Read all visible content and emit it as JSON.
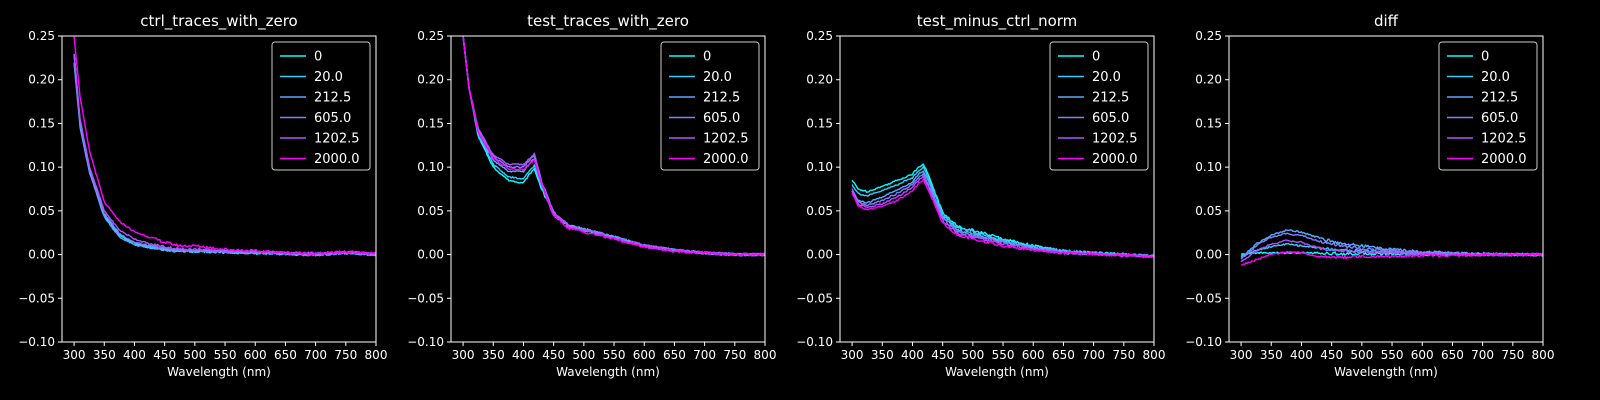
{
  "figure": {
    "background": "#000000",
    "foreground": "#ffffff"
  },
  "chart_data": [
    {
      "type": "line",
      "title": "ctrl_traces_with_zero",
      "xlabel": "Wavelength (nm)",
      "ylabel": "",
      "xlim": [
        280,
        800
      ],
      "ylim": [
        -0.1,
        0.25
      ],
      "xticks": [
        "300",
        "350",
        "400",
        "450",
        "500",
        "550",
        "600",
        "650",
        "700",
        "750",
        "800"
      ],
      "yticks": [
        "−0.10",
        "−0.05",
        "0.00",
        "0.05",
        "0.10",
        "0.15",
        "0.20",
        "0.25"
      ],
      "legend": "top-right",
      "grid": false,
      "x": [
        300,
        310,
        325,
        350,
        375,
        400,
        425,
        450,
        475,
        500,
        550,
        600,
        650,
        700,
        750,
        800
      ],
      "series": [
        {
          "name": "0",
          "color": "#00ffff",
          "values": [
            0.23,
            0.15,
            0.1,
            0.045,
            0.022,
            0.012,
            0.008,
            0.006,
            0.004,
            0.004,
            0.003,
            0.002,
            0.001,
            0.0,
            0.002,
            0.0
          ]
        },
        {
          "name": "20.0",
          "color": "#33ccff",
          "values": [
            0.23,
            0.15,
            0.1,
            0.046,
            0.023,
            0.013,
            0.009,
            0.006,
            0.005,
            0.004,
            0.003,
            0.002,
            0.001,
            0.0,
            0.002,
            0.0
          ]
        },
        {
          "name": "212.5",
          "color": "#55aaff",
          "values": [
            0.22,
            0.145,
            0.095,
            0.043,
            0.02,
            0.011,
            0.008,
            0.005,
            0.004,
            0.004,
            0.003,
            0.002,
            0.001,
            0.0,
            0.002,
            0.0
          ]
        },
        {
          "name": "605.0",
          "color": "#7f80ff",
          "values": [
            0.22,
            0.15,
            0.098,
            0.047,
            0.024,
            0.014,
            0.01,
            0.007,
            0.005,
            0.005,
            0.004,
            0.003,
            0.001,
            0.0,
            0.002,
            0.0
          ]
        },
        {
          "name": "1202.5",
          "color": "#aa55ff",
          "values": [
            0.23,
            0.155,
            0.102,
            0.05,
            0.028,
            0.018,
            0.012,
            0.009,
            0.006,
            0.006,
            0.004,
            0.003,
            0.002,
            0.001,
            0.003,
            0.001
          ]
        },
        {
          "name": "2000.0",
          "color": "#ff00ff",
          "values": [
            0.25,
            0.18,
            0.12,
            0.06,
            0.038,
            0.026,
            0.02,
            0.014,
            0.01,
            0.01,
            0.006,
            0.004,
            0.002,
            0.001,
            0.003,
            0.001
          ]
        }
      ]
    },
    {
      "type": "line",
      "title": "test_traces_with_zero",
      "xlabel": "Wavelength (nm)",
      "ylabel": "",
      "xlim": [
        280,
        800
      ],
      "ylim": [
        -0.1,
        0.25
      ],
      "xticks": [
        "300",
        "350",
        "400",
        "450",
        "500",
        "550",
        "600",
        "650",
        "700",
        "750",
        "800"
      ],
      "yticks": [
        "−0.10",
        "−0.05",
        "0.00",
        "0.05",
        "0.10",
        "0.15",
        "0.20",
        "0.25"
      ],
      "legend": "top-right",
      "grid": false,
      "x": [
        300,
        310,
        325,
        350,
        375,
        400,
        410,
        418,
        430,
        450,
        475,
        500,
        550,
        600,
        650,
        700,
        750,
        800
      ],
      "series": [
        {
          "name": "0",
          "color": "#00ffff",
          "values": [
            0.25,
            0.19,
            0.135,
            0.1,
            0.085,
            0.082,
            0.092,
            0.098,
            0.075,
            0.046,
            0.032,
            0.028,
            0.02,
            0.01,
            0.005,
            0.002,
            0.0,
            0.0
          ]
        },
        {
          "name": "20.0",
          "color": "#33ccff",
          "values": [
            0.25,
            0.19,
            0.137,
            0.103,
            0.089,
            0.086,
            0.096,
            0.102,
            0.078,
            0.047,
            0.033,
            0.029,
            0.02,
            0.01,
            0.005,
            0.002,
            0.0,
            0.0
          ]
        },
        {
          "name": "212.5",
          "color": "#55aaff",
          "values": [
            0.25,
            0.19,
            0.14,
            0.108,
            0.095,
            0.095,
            0.104,
            0.11,
            0.082,
            0.048,
            0.033,
            0.029,
            0.02,
            0.01,
            0.005,
            0.002,
            0.0,
            0.0
          ]
        },
        {
          "name": "605.0",
          "color": "#7f80ff",
          "values": [
            0.25,
            0.19,
            0.142,
            0.112,
            0.1,
            0.1,
            0.108,
            0.113,
            0.083,
            0.048,
            0.033,
            0.029,
            0.02,
            0.01,
            0.005,
            0.002,
            0.0,
            0.0
          ]
        },
        {
          "name": "1202.5",
          "color": "#aa55ff",
          "values": [
            0.25,
            0.19,
            0.144,
            0.114,
            0.103,
            0.103,
            0.11,
            0.115,
            0.084,
            0.048,
            0.032,
            0.028,
            0.019,
            0.01,
            0.005,
            0.002,
            0.0,
            0.0
          ]
        },
        {
          "name": "2000.0",
          "color": "#ff00ff",
          "values": [
            0.25,
            0.19,
            0.14,
            0.11,
            0.098,
            0.097,
            0.104,
            0.108,
            0.08,
            0.045,
            0.03,
            0.026,
            0.018,
            0.009,
            0.004,
            0.002,
            0.0,
            0.0
          ]
        }
      ]
    },
    {
      "type": "line",
      "title": "test_minus_ctrl_norm",
      "xlabel": "Wavelength (nm)",
      "ylabel": "",
      "xlim": [
        280,
        800
      ],
      "ylim": [
        -0.1,
        0.25
      ],
      "xticks": [
        "300",
        "350",
        "400",
        "450",
        "500",
        "550",
        "600",
        "650",
        "700",
        "750",
        "800"
      ],
      "yticks": [
        "−0.10",
        "−0.05",
        "0.00",
        "0.05",
        "0.10",
        "0.15",
        "0.20",
        "0.25"
      ],
      "legend": "top-right",
      "grid": false,
      "x": [
        300,
        310,
        325,
        350,
        375,
        400,
        410,
        418,
        430,
        450,
        475,
        500,
        550,
        600,
        650,
        700,
        750,
        800
      ],
      "series": [
        {
          "name": "0",
          "color": "#00ffff",
          "values": [
            0.085,
            0.075,
            0.072,
            0.078,
            0.085,
            0.092,
            0.1,
            0.104,
            0.085,
            0.048,
            0.032,
            0.028,
            0.018,
            0.01,
            0.004,
            0.002,
            0.0,
            -0.002
          ]
        },
        {
          "name": "20.0",
          "color": "#33ccff",
          "values": [
            0.08,
            0.07,
            0.067,
            0.073,
            0.08,
            0.088,
            0.096,
            0.1,
            0.082,
            0.046,
            0.03,
            0.026,
            0.016,
            0.009,
            0.004,
            0.002,
            0.0,
            -0.002
          ]
        },
        {
          "name": "212.5",
          "color": "#55aaff",
          "values": [
            0.072,
            0.062,
            0.059,
            0.066,
            0.074,
            0.083,
            0.092,
            0.096,
            0.078,
            0.043,
            0.028,
            0.024,
            0.015,
            0.008,
            0.003,
            0.001,
            0.0,
            -0.002
          ]
        },
        {
          "name": "605.0",
          "color": "#7f80ff",
          "values": [
            0.075,
            0.06,
            0.056,
            0.062,
            0.07,
            0.08,
            0.088,
            0.092,
            0.074,
            0.041,
            0.026,
            0.022,
            0.014,
            0.007,
            0.003,
            0.001,
            0.0,
            -0.002
          ]
        },
        {
          "name": "1202.5",
          "color": "#aa55ff",
          "values": [
            0.072,
            0.058,
            0.054,
            0.058,
            0.066,
            0.077,
            0.085,
            0.089,
            0.072,
            0.039,
            0.024,
            0.02,
            0.012,
            0.006,
            0.002,
            0.001,
            -0.001,
            -0.002
          ]
        },
        {
          "name": "2000.0",
          "color": "#ff00ff",
          "values": [
            0.07,
            0.056,
            0.051,
            0.055,
            0.062,
            0.073,
            0.081,
            0.085,
            0.068,
            0.036,
            0.022,
            0.018,
            0.01,
            0.005,
            0.002,
            0.001,
            -0.001,
            -0.002
          ]
        }
      ]
    },
    {
      "type": "line",
      "title": "diff",
      "xlabel": "Wavelength (nm)",
      "ylabel": "",
      "xlim": [
        280,
        800
      ],
      "ylim": [
        -0.1,
        0.25
      ],
      "xticks": [
        "300",
        "350",
        "400",
        "450",
        "500",
        "550",
        "600",
        "650",
        "700",
        "750",
        "800"
      ],
      "yticks": [
        "−0.10",
        "−0.05",
        "0.00",
        "0.05",
        "0.10",
        "0.15",
        "0.20",
        "0.25"
      ],
      "legend": "top-right",
      "grid": false,
      "x": [
        300,
        325,
        350,
        375,
        400,
        425,
        450,
        475,
        500,
        550,
        600,
        650,
        700,
        750,
        800
      ],
      "series": [
        {
          "name": "0",
          "color": "#00ffff",
          "values": [
            0.0,
            0.002,
            0.002,
            0.002,
            0.002,
            0.002,
            0.001,
            0.001,
            0.001,
            0.001,
            0.0,
            0.0,
            0.0,
            0.0,
            0.0
          ]
        },
        {
          "name": "20.0",
          "color": "#33ccff",
          "values": [
            -0.002,
            0.005,
            0.009,
            0.012,
            0.01,
            0.008,
            0.006,
            0.005,
            0.004,
            0.003,
            0.002,
            0.001,
            0.0,
            0.0,
            0.0
          ]
        },
        {
          "name": "212.5",
          "color": "#55aaff",
          "values": [
            -0.004,
            0.012,
            0.022,
            0.028,
            0.026,
            0.02,
            0.015,
            0.012,
            0.01,
            0.006,
            0.003,
            0.002,
            0.001,
            0.0,
            0.0
          ]
        },
        {
          "name": "605.0",
          "color": "#7f80ff",
          "values": [
            -0.005,
            0.01,
            0.02,
            0.024,
            0.022,
            0.016,
            0.012,
            0.009,
            0.007,
            0.004,
            0.002,
            0.001,
            0.0,
            0.0,
            0.0
          ]
        },
        {
          "name": "1202.5",
          "color": "#aa55ff",
          "values": [
            -0.008,
            0.004,
            0.012,
            0.016,
            0.014,
            0.008,
            0.005,
            0.004,
            0.003,
            0.002,
            0.001,
            0.0,
            0.0,
            0.0,
            0.0
          ]
        },
        {
          "name": "2000.0",
          "color": "#ff00ff",
          "values": [
            -0.012,
            -0.006,
            0.0,
            0.003,
            0.002,
            -0.002,
            -0.003,
            -0.003,
            -0.002,
            -0.002,
            -0.001,
            -0.001,
            0.0,
            0.0,
            0.0
          ]
        }
      ]
    }
  ]
}
